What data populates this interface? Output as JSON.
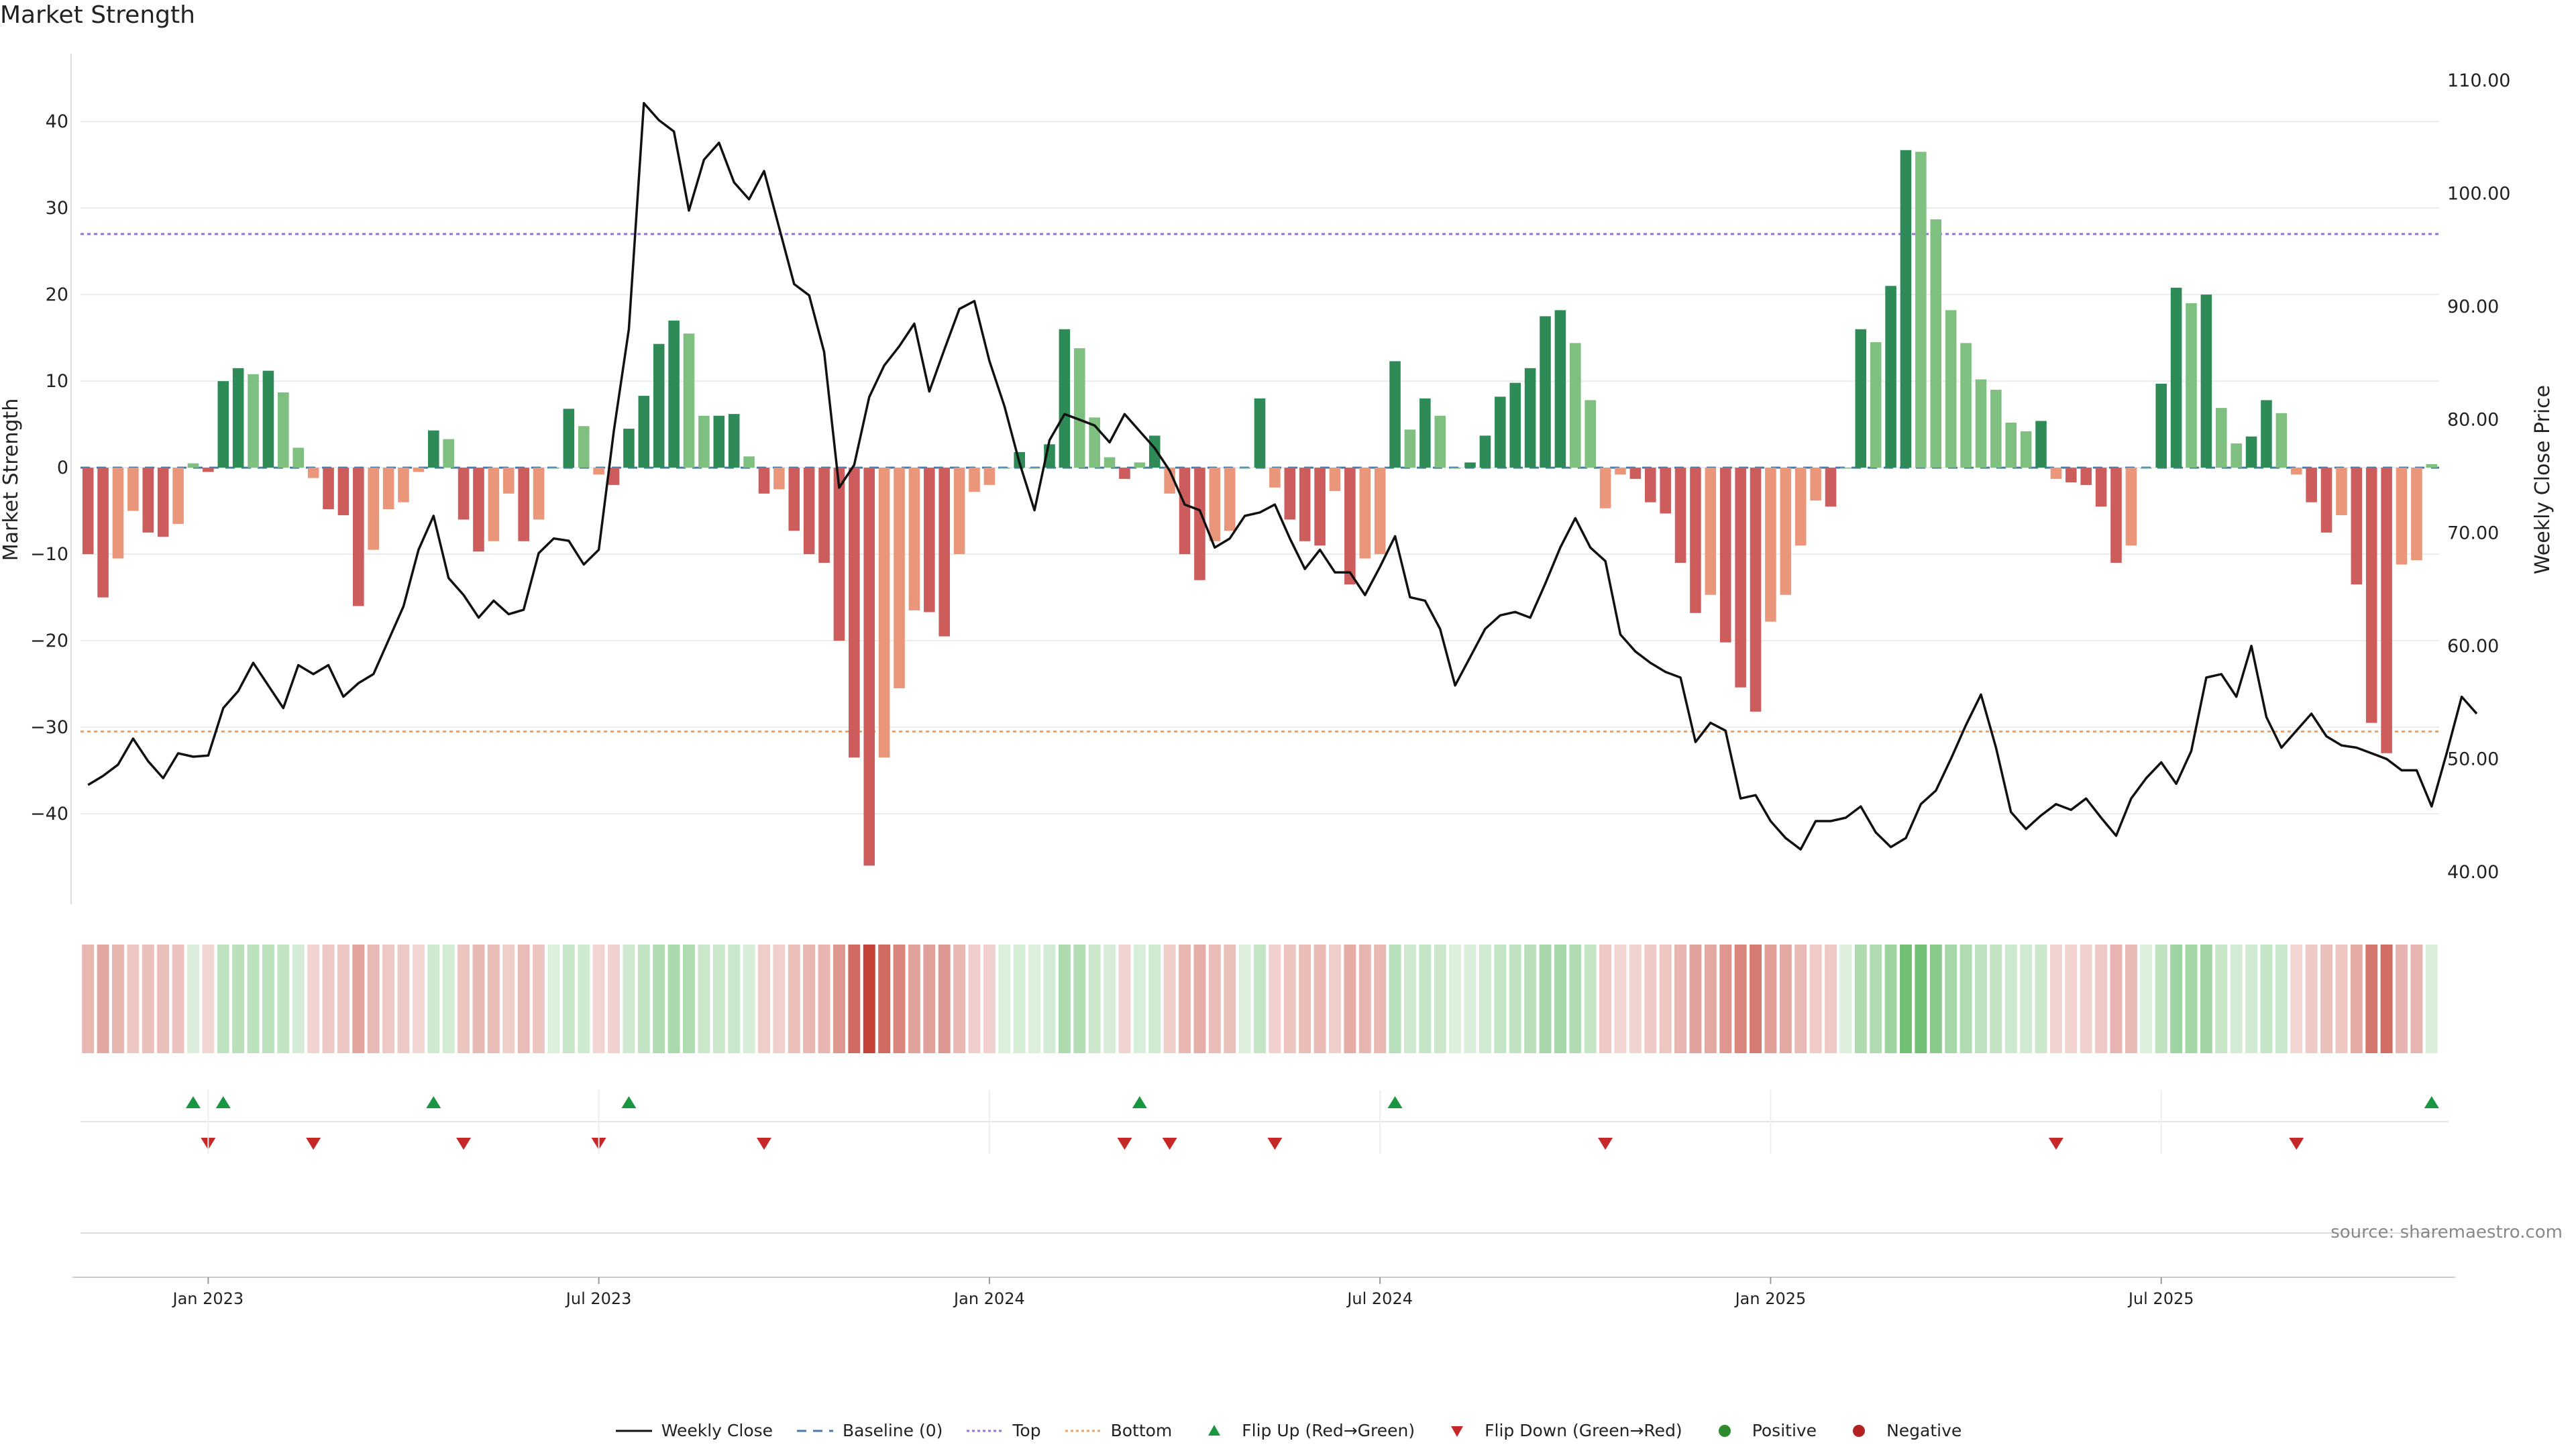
{
  "chart_data": {
    "type": "bar",
    "title": "Market Strength",
    "ylabel": "Market Strength",
    "y2label": "Weekly Close Price",
    "ylim": [
      -50,
      48
    ],
    "y2lim": [
      37.5,
      112.5
    ],
    "yticks": [
      40,
      30,
      20,
      10,
      0,
      -10,
      -20,
      -30,
      -40
    ],
    "y2ticks": [
      "110.00",
      "100.00",
      "90.00",
      "80.00",
      "70.00",
      "60.00",
      "50.00",
      "40.00"
    ],
    "x_ticks": [
      {
        "label": "Jan 2023",
        "week": 8
      },
      {
        "label": "Jul 2023",
        "week": 34
      },
      {
        "label": "Jan 2024",
        "week": 60
      },
      {
        "label": "Jul 2024",
        "week": 86
      },
      {
        "label": "Jan 2025",
        "week": 112
      },
      {
        "label": "Jul 2025",
        "week": 138
      }
    ],
    "reference_lines": {
      "baseline": 0,
      "top": 27,
      "bottom": -30.5
    },
    "strength": [
      -10,
      -15,
      -10.5,
      -5,
      -7.5,
      -8,
      -6.5,
      0.5,
      -0.5,
      10,
      11.5,
      10.8,
      11.2,
      8.7,
      2.3,
      -1.2,
      -4.8,
      -5.5,
      -16,
      -9.5,
      -4.8,
      -4,
      -0.5,
      4.3,
      3.3,
      -6,
      -9.7,
      -8.5,
      -3,
      -8.5,
      -6,
      0,
      6.8,
      4.8,
      -0.8,
      -2,
      4.5,
      8.3,
      14.3,
      17,
      15.5,
      6,
      6,
      6.2,
      1.3,
      -3,
      -2.5,
      -7.3,
      -10,
      -11,
      -20,
      -33.5,
      -46,
      -33.5,
      -25.5,
      -16.5,
      -16.7,
      -19.5,
      -10,
      -2.8,
      -2,
      0,
      1.8,
      0,
      2.7,
      16,
      13.8,
      5.8,
      1.2,
      -1.3,
      0.6,
      3.7,
      -3,
      -10,
      -13,
      -8.5,
      -7.3,
      0,
      8,
      -2.3,
      -6,
      -8.5,
      -9,
      -2.7,
      -13.5,
      -10.5,
      -10,
      12.3,
      4.4,
      8,
      6,
      0,
      0.6,
      3.7,
      8.2,
      9.8,
      11.5,
      17.5,
      18.2,
      14.4,
      7.8,
      -4.7,
      -0.8,
      -1.3,
      -4,
      -5.3,
      -11,
      -16.8,
      -14.7,
      -20.2,
      -25.4,
      -28.2,
      -17.8,
      -14.7,
      -9,
      -3.8,
      -4.5,
      0,
      16,
      14.5,
      21,
      36.7,
      36.5,
      28.7,
      18.2,
      14.4,
      10.2,
      9,
      5.2,
      4.2,
      5.4,
      -1.3,
      -1.7,
      -2,
      -4.5,
      -11,
      -9,
      0,
      9.7,
      20.8,
      19,
      20,
      6.9,
      2.8,
      3.6,
      7.8,
      6.3,
      -0.8,
      -4,
      -7.5,
      -5.5,
      -13.5,
      -29.5,
      -33,
      -11.2,
      -10.7,
      0.4
    ],
    "close": [
      47.7,
      48.5,
      49.5,
      51.8,
      49.8,
      48.3,
      50.5,
      50.2,
      50.3,
      54.5,
      56,
      58.5,
      56.5,
      54.5,
      58.3,
      57.5,
      58.3,
      55.5,
      56.7,
      57.5,
      60.5,
      63.5,
      68.5,
      71.5,
      66,
      64.5,
      62.5,
      64,
      62.8,
      63.2,
      68.2,
      69.5,
      69.3,
      67.2,
      68.5,
      79,
      88,
      108,
      106.5,
      105.5,
      98.5,
      103,
      104.5,
      101,
      99.5,
      102,
      97,
      92,
      91,
      86,
      74,
      76,
      82,
      84.8,
      86.5,
      88.5,
      82.5,
      86.2,
      89.8,
      90.5,
      85.2,
      81.2,
      76.2,
      72,
      78.2,
      80.5,
      80,
      79.5,
      78,
      80.5,
      79,
      77.5,
      75.5,
      72.5,
      72,
      68.7,
      69.5,
      71.5,
      71.8,
      72.5,
      69.5,
      66.8,
      68.5,
      66.5,
      66.5,
      64.5,
      67,
      69.7,
      64.3,
      64,
      61.5,
      56.5,
      59,
      61.5,
      62.7,
      63,
      62.5,
      65.5,
      68.7,
      71.3,
      68.7,
      67.5,
      61,
      59.5,
      58.5,
      57.7,
      57.2,
      51.5,
      53.2,
      52.5,
      46.5,
      46.8,
      44.5,
      43,
      42,
      44.5,
      44.5,
      44.8,
      45.8,
      43.5,
      42.2,
      43,
      46,
      47.2,
      50,
      53,
      55.7,
      51,
      45.3,
      43.8,
      45,
      46,
      45.5,
      46.5,
      44.8,
      43.2,
      46.5,
      48.3,
      49.7,
      47.8,
      50.7,
      57.2,
      57.5,
      55.5,
      60,
      53.7,
      51,
      52.5,
      54,
      52,
      51.2,
      51,
      50.5,
      50,
      49,
      49,
      45.8,
      50.5,
      55.5,
      54
    ]
  },
  "legend": [
    {
      "label": "Weekly Close",
      "symbol": "line"
    },
    {
      "label": "Baseline (0)",
      "symbol": "dash"
    },
    {
      "label": "Top",
      "symbol": "dot-purple"
    },
    {
      "label": "Bottom",
      "symbol": "dot-orange"
    },
    {
      "label": "Flip Up (Red→Green)",
      "symbol": "tri-up"
    },
    {
      "label": "Flip Down (Green→Red)",
      "symbol": "tri-down"
    },
    {
      "label": "Positive",
      "symbol": "circle-green"
    },
    {
      "label": "Negative",
      "symbol": "circle-red"
    }
  ],
  "source": "source: sharemaestro.com",
  "colors": {
    "strong_green": "#2e8b57",
    "light_green": "#7fbf7f",
    "strong_red": "#cd5c5c",
    "light_red": "#e9967a",
    "line": "#111111",
    "top": "#9370db",
    "bottom": "#f4a261",
    "flip_up": "#1a9641",
    "flip_down": "#c62828",
    "positive": "#2e8b2e",
    "negative": "#b22222"
  }
}
